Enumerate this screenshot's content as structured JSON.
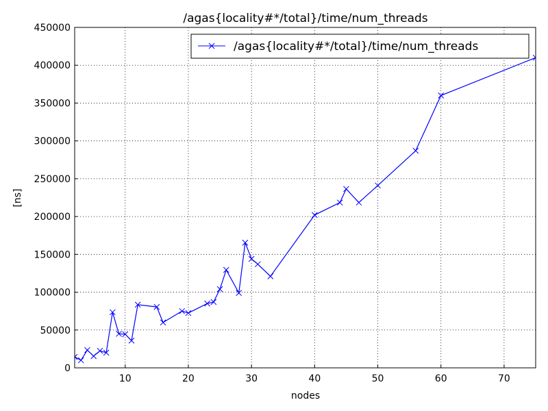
{
  "chart_data": {
    "type": "line",
    "title": "/agas{locality#*/total}/time/num_threads",
    "xlabel": "nodes",
    "ylabel": "[ns]",
    "x": [
      2,
      3,
      4,
      5,
      6,
      7,
      8,
      9,
      10,
      11,
      12,
      15,
      16,
      19,
      20,
      23,
      24,
      25,
      26,
      28,
      29,
      30,
      31,
      33,
      40,
      44,
      45,
      47,
      50,
      56,
      60,
      75
    ],
    "series": [
      {
        "name": "/agas{locality#*/total}/time/num_threads",
        "color": "#0000ff",
        "values": [
          14500,
          10000,
          23500,
          15500,
          22500,
          20000,
          73500,
          45000,
          44500,
          36000,
          83500,
          80500,
          60000,
          75000,
          72500,
          85000,
          87000,
          104000,
          129500,
          99000,
          165500,
          144000,
          137000,
          121000,
          202000,
          218500,
          236500,
          218500,
          241000,
          287000,
          360000,
          410000
        ]
      }
    ],
    "xlim": [
      2,
      75
    ],
    "xticks": [
      10,
      20,
      30,
      40,
      50,
      60,
      70
    ],
    "ylim": [
      0,
      450000
    ],
    "yticks": [
      0,
      50000,
      100000,
      150000,
      200000,
      250000,
      300000,
      350000,
      400000,
      450000
    ],
    "grid": true,
    "legend": "upper right",
    "marker": "x"
  }
}
